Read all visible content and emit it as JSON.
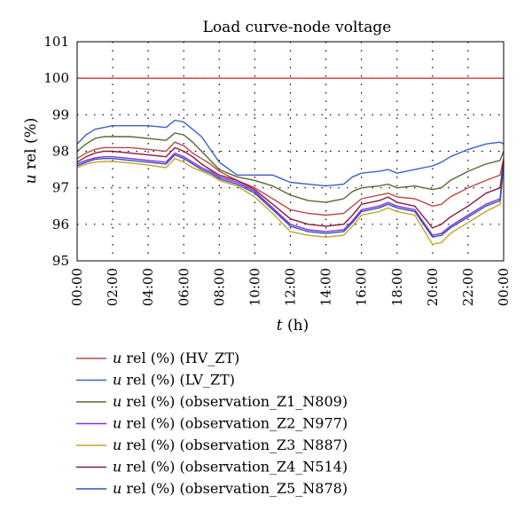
{
  "chart_data": {
    "type": "line",
    "title": "Load curve-node voltage",
    "xlabel": "t (h)",
    "ylabel": "u rel (%)",
    "x_ticks": [
      "00:00",
      "02:00",
      "04:00",
      "06:00",
      "08:00",
      "10:00",
      "12:00",
      "14:00",
      "16:00",
      "18:00",
      "20:00",
      "22:00",
      "00:00"
    ],
    "y_ticks": [
      "95",
      "96",
      "97",
      "98",
      "99",
      "100",
      "101"
    ],
    "xlim": [
      0,
      24
    ],
    "ylim": [
      95,
      101
    ],
    "grid": true,
    "legend_position": "bottom",
    "reference_line": {
      "y": 100,
      "color": "#e03030"
    },
    "series": [
      {
        "name": "u rel (%) (HV_ZT)",
        "color": "#b84a4a",
        "x": [
          0,
          0.5,
          1,
          1.5,
          2,
          3,
          4,
          5,
          5.5,
          6,
          6.5,
          7,
          7.5,
          8,
          9,
          10,
          11,
          12,
          13,
          14,
          15,
          15.5,
          16,
          17,
          17.5,
          18,
          19,
          20,
          20.5,
          21,
          22,
          23,
          23.8,
          24
        ],
        "y": [
          97.8,
          97.95,
          98.05,
          98.1,
          98.1,
          98.1,
          98.05,
          98.0,
          98.25,
          98.15,
          97.95,
          97.8,
          97.65,
          97.45,
          97.2,
          97.0,
          96.7,
          96.4,
          96.3,
          96.25,
          96.3,
          96.5,
          96.7,
          96.8,
          96.85,
          96.75,
          96.7,
          96.5,
          96.55,
          96.75,
          97.0,
          97.2,
          97.35,
          97.8
        ]
      },
      {
        "name": "u rel (%) (LV_ZT)",
        "color": "#3b62c4",
        "x": [
          0,
          0.5,
          1,
          1.5,
          2,
          3,
          4,
          5,
          5.5,
          6,
          6.5,
          7,
          7.5,
          8,
          9,
          10,
          11,
          12,
          13,
          14,
          15,
          15.5,
          16,
          17,
          17.5,
          18,
          19,
          20,
          20.5,
          21,
          22,
          23,
          23.8,
          24
        ],
        "y": [
          98.2,
          98.45,
          98.6,
          98.65,
          98.7,
          98.7,
          98.7,
          98.65,
          98.85,
          98.8,
          98.6,
          98.4,
          98.05,
          97.7,
          97.35,
          97.35,
          97.35,
          97.15,
          97.1,
          97.05,
          97.1,
          97.3,
          97.4,
          97.45,
          97.5,
          97.4,
          97.5,
          97.6,
          97.7,
          97.85,
          98.05,
          98.2,
          98.25,
          98.2
        ]
      },
      {
        "name": "u rel (%) (observation_Z1_N809)",
        "color": "#556b2f",
        "x": [
          0,
          0.5,
          1,
          1.5,
          2,
          3,
          4,
          5,
          5.5,
          6,
          6.5,
          7,
          7.5,
          8,
          9,
          10,
          11,
          12,
          13,
          14,
          15,
          15.5,
          16,
          17,
          17.5,
          18,
          19,
          20,
          20.5,
          21,
          22,
          23,
          23.8,
          24
        ],
        "y": [
          98.0,
          98.2,
          98.35,
          98.4,
          98.4,
          98.4,
          98.35,
          98.3,
          98.5,
          98.45,
          98.25,
          98.0,
          97.75,
          97.5,
          97.3,
          97.2,
          97.05,
          96.8,
          96.65,
          96.6,
          96.7,
          96.9,
          97.0,
          97.05,
          97.1,
          97.0,
          97.05,
          96.95,
          97.0,
          97.2,
          97.45,
          97.65,
          97.75,
          98.0
        ]
      },
      {
        "name": "u rel (%) (observation_Z2_N977)",
        "color": "#8a2be2",
        "x": [
          0,
          0.5,
          1,
          1.5,
          2,
          3,
          4,
          5,
          5.5,
          6,
          6.5,
          7,
          7.5,
          8,
          9,
          10,
          11,
          12,
          13,
          14,
          15,
          15.5,
          16,
          17,
          17.5,
          18,
          19,
          20,
          20.5,
          21,
          22,
          23,
          23.8,
          24
        ],
        "y": [
          97.65,
          97.75,
          97.82,
          97.85,
          97.85,
          97.8,
          97.75,
          97.7,
          97.95,
          97.85,
          97.7,
          97.55,
          97.45,
          97.3,
          97.15,
          96.9,
          96.45,
          96.0,
          95.85,
          95.8,
          95.85,
          96.1,
          96.4,
          96.5,
          96.6,
          96.5,
          96.4,
          95.7,
          95.75,
          95.95,
          96.25,
          96.55,
          96.7,
          97.7
        ]
      },
      {
        "name": "u rel (%) (observation_Z3_N887)",
        "color": "#c9a227",
        "x": [
          0,
          0.5,
          1,
          1.5,
          2,
          3,
          4,
          5,
          5.5,
          6,
          6.5,
          7,
          7.5,
          8,
          9,
          10,
          11,
          12,
          13,
          14,
          15,
          15.5,
          16,
          17,
          17.5,
          18,
          19,
          20,
          20.5,
          21,
          22,
          23,
          23.8,
          24
        ],
        "y": [
          97.55,
          97.65,
          97.7,
          97.72,
          97.72,
          97.68,
          97.62,
          97.55,
          97.8,
          97.7,
          97.55,
          97.45,
          97.35,
          97.2,
          97.05,
          96.75,
          96.3,
          95.8,
          95.7,
          95.65,
          95.7,
          95.95,
          96.25,
          96.35,
          96.45,
          96.35,
          96.25,
          95.45,
          95.5,
          95.75,
          96.05,
          96.35,
          96.55,
          97.6
        ]
      },
      {
        "name": "u rel (%) (observation_Z4_N514)",
        "color": "#8b1a3a",
        "x": [
          0,
          0.5,
          1,
          1.5,
          2,
          3,
          4,
          5,
          5.5,
          6,
          6.5,
          7,
          7.5,
          8,
          9,
          10,
          11,
          12,
          13,
          14,
          15,
          15.5,
          16,
          17,
          17.5,
          18,
          19,
          20,
          20.5,
          21,
          22,
          23,
          23.8,
          24
        ],
        "y": [
          97.7,
          97.85,
          97.95,
          98.0,
          98.0,
          97.95,
          97.9,
          97.85,
          98.1,
          98.0,
          97.85,
          97.65,
          97.5,
          97.35,
          97.2,
          96.95,
          96.55,
          96.15,
          96.0,
          95.95,
          96.0,
          96.25,
          96.55,
          96.65,
          96.75,
          96.6,
          96.5,
          95.9,
          96.0,
          96.2,
          96.5,
          96.85,
          97.0,
          97.75
        ]
      },
      {
        "name": "u rel (%) (observation_Z5_N878)",
        "color": "#2a55b8",
        "x": [
          0,
          0.5,
          1,
          1.5,
          2,
          3,
          4,
          5,
          5.5,
          6,
          6.5,
          7,
          7.5,
          8,
          9,
          10,
          11,
          12,
          13,
          14,
          15,
          15.5,
          16,
          17,
          17.5,
          18,
          19,
          20,
          20.5,
          21,
          22,
          23,
          23.8,
          24
        ],
        "y": [
          97.6,
          97.7,
          97.78,
          97.8,
          97.8,
          97.75,
          97.7,
          97.65,
          97.9,
          97.8,
          97.65,
          97.5,
          97.4,
          97.25,
          97.1,
          96.85,
          96.4,
          95.95,
          95.8,
          95.75,
          95.8,
          96.05,
          96.35,
          96.45,
          96.55,
          96.45,
          96.35,
          95.65,
          95.7,
          95.9,
          96.2,
          96.5,
          96.65,
          97.65
        ]
      }
    ]
  }
}
